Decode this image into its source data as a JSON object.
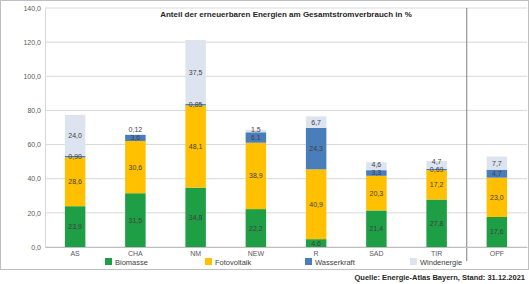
{
  "chart_data": {
    "type": "bar",
    "title": "Anteil der erneuerbaren Energien am Gesamtstromverbrauch in %",
    "annotations": [
      "Quelle: Energie-Atlas Bayern, Stand: 31.12.2021"
    ],
    "categories": [
      "AS",
      "CHA",
      "NM",
      "NEW",
      "R",
      "SAD",
      "TIR",
      "OPF"
    ],
    "series": [
      {
        "name": "Biomasse",
        "color": "#1e9e45",
        "values": [
          23.9,
          31.5,
          34.8,
          22.2,
          4.6,
          21.4,
          27.8,
          17.6
        ],
        "value_labels": [
          "23,9",
          "31,5",
          "34,8",
          "22,2",
          "4,6",
          "21,4",
          "27,8",
          "17,6"
        ]
      },
      {
        "name": "Fotovoltaik",
        "color": "#ffc000",
        "values": [
          28.6,
          30.6,
          48.1,
          38.9,
          40.9,
          20.3,
          17.2,
          23.0
        ],
        "value_labels": [
          "28,6",
          "30,6",
          "48,1",
          "38,9",
          "40,9",
          "20,3",
          "17,2",
          "23,0"
        ]
      },
      {
        "name": "Wasserkraft",
        "color": "#4a7ebb",
        "values": [
          0.9,
          3.6,
          0.85,
          6.1,
          24.3,
          3.3,
          0.69,
          4.7
        ],
        "value_labels": [
          "0,90",
          "3,6",
          "0,85",
          "6,1",
          "24,3",
          "3,3",
          "0,69",
          "4,7"
        ]
      },
      {
        "name": "Windenergie",
        "color": "#dde4f0",
        "values": [
          24.0,
          0.12,
          37.5,
          1.5,
          6.7,
          4.6,
          4.7,
          7.7
        ],
        "value_labels": [
          "24,0",
          "0,12",
          "37,5",
          "1,5",
          "6,7",
          "4,6",
          "4,7",
          "7,7"
        ]
      }
    ],
    "ylim": [
      0,
      140
    ],
    "yticks": [
      {
        "value": 0,
        "label": "0,0"
      },
      {
        "value": 20,
        "label": "20,0"
      },
      {
        "value": 40,
        "label": "40,0"
      },
      {
        "value": 60,
        "label": "60,0"
      },
      {
        "value": 80,
        "label": "80,0"
      },
      {
        "value": 100,
        "label": "100,0"
      },
      {
        "value": 120,
        "label": "120,0"
      },
      {
        "value": 140,
        "label": "140,0"
      }
    ],
    "stacked": true,
    "grid": true,
    "data_labels": true,
    "legend": "bottom"
  }
}
